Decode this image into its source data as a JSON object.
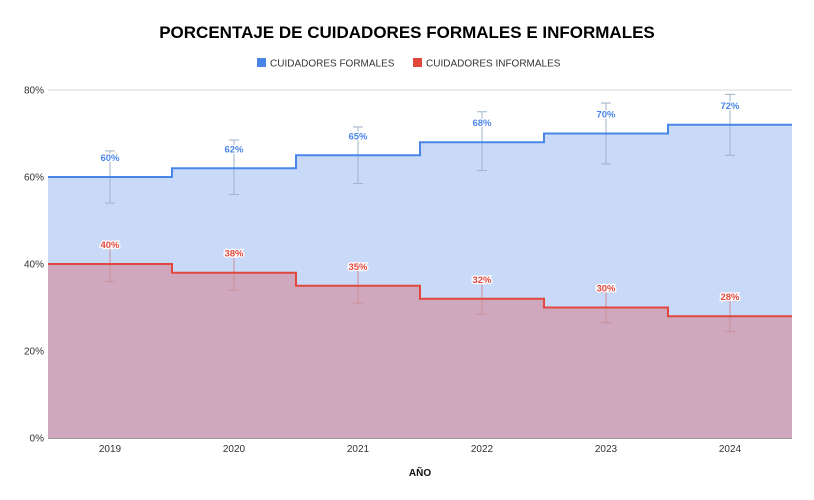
{
  "chart_data": {
    "type": "area",
    "subtype": "stepped",
    "title": "PORCENTAJE DE CUIDADORES FORMALES E INFORMALES",
    "xlabel": "AÑO",
    "ylabel": "",
    "categories": [
      "2019",
      "2020",
      "2021",
      "2022",
      "2023",
      "2024"
    ],
    "ylim": [
      0,
      80
    ],
    "yticks": [
      0,
      20,
      40,
      60,
      80
    ],
    "ytick_labels": [
      "0%",
      "20%",
      "40%",
      "60%",
      "80%"
    ],
    "grid": true,
    "legend_position": "top",
    "series": [
      {
        "name": "CUIDADORES FORMALES",
        "color": "#4a86e8",
        "fill": "#c9daf8",
        "values": [
          60,
          62,
          65,
          68,
          70,
          72
        ],
        "labels": [
          "60%",
          "62%",
          "65%",
          "68%",
          "70%",
          "72%"
        ],
        "error_low": [
          54,
          56,
          58.5,
          61.5,
          63,
          65
        ],
        "error_high": [
          66,
          68.5,
          71.5,
          75,
          77,
          79
        ]
      },
      {
        "name": "CUIDADORES INFORMALES",
        "color": "#e0483e",
        "fill": "#d0a8bd",
        "values": [
          40,
          38,
          35,
          32,
          30,
          28
        ],
        "labels": [
          "40%",
          "38%",
          "35%",
          "32%",
          "30%",
          "28%"
        ],
        "error_low": [
          36,
          34,
          31,
          28.5,
          26.5,
          24.5
        ],
        "error_high": [
          44,
          42,
          39,
          35.5,
          33.5,
          31.5
        ]
      }
    ]
  }
}
